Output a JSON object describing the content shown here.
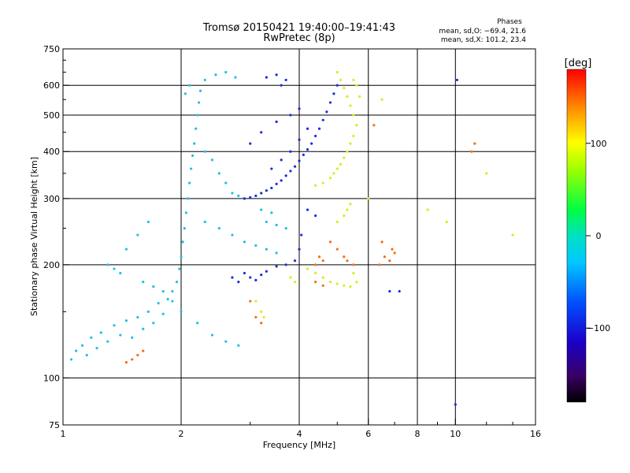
{
  "chart_data": {
    "type": "scatter",
    "title": "Tromsø 20150421 19:40:00–19:41:43",
    "subtitle": "RwPretec (8p)",
    "xlabel": "Frequency [MHz]",
    "ylabel": "Stationary phase Virtual Height [km]",
    "xscale": "log",
    "yscale": "log",
    "xlim": [
      1,
      16
    ],
    "ylim": [
      75,
      750
    ],
    "xticks": [
      1,
      2,
      4,
      6,
      8,
      10,
      16
    ],
    "yticks": [
      75,
      100,
      200,
      300,
      400,
      500,
      600,
      750
    ],
    "grid_x": [
      2,
      4,
      6,
      8,
      10
    ],
    "grid_y": [
      100,
      200,
      300,
      400,
      500,
      600
    ],
    "minor_xticks": [
      3,
      5,
      7,
      9,
      12,
      14
    ],
    "minor_yticks": [
      150,
      250,
      350,
      450,
      550,
      650,
      700
    ],
    "grid": true,
    "phase_stats": {
      "header": "Phases",
      "line1": "mean, sd,O: −69.4, 21.6",
      "line2": "mean, sd,X: 101.2, 23.4"
    },
    "colorbar": {
      "label": "[deg]",
      "range": [
        -180,
        180
      ],
      "ticks": [
        100,
        0,
        -100
      ],
      "colormap": "rainbow"
    },
    "series": [
      {
        "color_description": "cyan (about -30 deg)",
        "points": [
          [
            1.05,
            112
          ],
          [
            1.08,
            118
          ],
          [
            1.12,
            122
          ],
          [
            1.15,
            115
          ],
          [
            1.18,
            128
          ],
          [
            1.22,
            120
          ],
          [
            1.25,
            132
          ],
          [
            1.3,
            125
          ],
          [
            1.35,
            138
          ],
          [
            1.4,
            130
          ],
          [
            1.45,
            142
          ],
          [
            1.5,
            128
          ],
          [
            1.55,
            145
          ],
          [
            1.6,
            135
          ],
          [
            1.65,
            150
          ],
          [
            1.7,
            140
          ],
          [
            1.75,
            158
          ],
          [
            1.8,
            148
          ],
          [
            1.85,
            162
          ],
          [
            1.9,
            170
          ],
          [
            1.95,
            180
          ],
          [
            1.98,
            195
          ],
          [
            2.0,
            210
          ],
          [
            2.02,
            230
          ],
          [
            2.04,
            250
          ],
          [
            2.06,
            275
          ],
          [
            2.08,
            300
          ],
          [
            2.1,
            330
          ],
          [
            2.12,
            360
          ],
          [
            2.14,
            390
          ],
          [
            2.16,
            420
          ],
          [
            2.18,
            460
          ],
          [
            2.2,
            500
          ],
          [
            2.22,
            540
          ],
          [
            2.24,
            580
          ],
          [
            2.1,
            600
          ],
          [
            2.05,
            570
          ],
          [
            2.3,
            400
          ],
          [
            2.4,
            380
          ],
          [
            2.5,
            350
          ],
          [
            2.6,
            330
          ],
          [
            2.7,
            310
          ],
          [
            2.8,
            305
          ],
          [
            2.9,
            300
          ],
          [
            2.3,
            260
          ],
          [
            2.5,
            250
          ],
          [
            2.7,
            240
          ],
          [
            2.9,
            230
          ],
          [
            3.1,
            225
          ],
          [
            3.3,
            220
          ],
          [
            3.5,
            215
          ],
          [
            3.3,
            260
          ],
          [
            3.5,
            255
          ],
          [
            3.7,
            250
          ],
          [
            3.2,
            280
          ],
          [
            3.4,
            275
          ],
          [
            1.3,
            200
          ],
          [
            1.35,
            195
          ],
          [
            1.4,
            190
          ],
          [
            1.6,
            180
          ],
          [
            1.7,
            175
          ],
          [
            1.8,
            170
          ],
          [
            1.9,
            160
          ],
          [
            2.0,
            150
          ],
          [
            2.2,
            140
          ],
          [
            2.4,
            130
          ],
          [
            2.6,
            125
          ],
          [
            2.8,
            122
          ],
          [
            1.45,
            220
          ],
          [
            1.55,
            240
          ],
          [
            1.65,
            260
          ],
          [
            2.3,
            620
          ],
          [
            2.45,
            640
          ],
          [
            2.6,
            650
          ],
          [
            2.75,
            630
          ]
        ]
      },
      {
        "color_description": "blue (about -100 deg)",
        "points": [
          [
            2.9,
            300
          ],
          [
            3.0,
            302
          ],
          [
            3.1,
            305
          ],
          [
            3.2,
            310
          ],
          [
            3.3,
            315
          ],
          [
            3.4,
            320
          ],
          [
            3.5,
            328
          ],
          [
            3.6,
            335
          ],
          [
            3.7,
            345
          ],
          [
            3.8,
            355
          ],
          [
            3.9,
            365
          ],
          [
            4.0,
            378
          ],
          [
            4.1,
            392
          ],
          [
            4.2,
            405
          ],
          [
            4.3,
            420
          ],
          [
            4.4,
            440
          ],
          [
            4.5,
            460
          ],
          [
            4.6,
            485
          ],
          [
            4.7,
            510
          ],
          [
            4.8,
            540
          ],
          [
            4.9,
            570
          ],
          [
            5.0,
            600
          ],
          [
            3.4,
            360
          ],
          [
            3.6,
            380
          ],
          [
            3.8,
            400
          ],
          [
            4.0,
            430
          ],
          [
            4.2,
            460
          ],
          [
            3.0,
            420
          ],
          [
            3.2,
            450
          ],
          [
            3.5,
            480
          ],
          [
            3.8,
            500
          ],
          [
            4.0,
            520
          ],
          [
            2.9,
            190
          ],
          [
            3.0,
            185
          ],
          [
            3.1,
            182
          ],
          [
            3.2,
            188
          ],
          [
            3.3,
            192
          ],
          [
            3.5,
            198
          ],
          [
            3.7,
            200
          ],
          [
            3.9,
            205
          ],
          [
            4.0,
            220
          ],
          [
            4.05,
            240
          ],
          [
            2.7,
            185
          ],
          [
            2.8,
            180
          ],
          [
            3.3,
            630
          ],
          [
            3.5,
            640
          ],
          [
            3.7,
            620
          ],
          [
            3.6,
            600
          ],
          [
            4.2,
            280
          ],
          [
            4.4,
            270
          ],
          [
            10.0,
            85
          ],
          [
            10.1,
            620
          ],
          [
            6.8,
            170
          ],
          [
            7.2,
            170
          ]
        ]
      },
      {
        "color_description": "yellow-green (about 100 deg)",
        "points": [
          [
            5.0,
            650
          ],
          [
            5.1,
            620
          ],
          [
            5.2,
            590
          ],
          [
            5.3,
            560
          ],
          [
            5.4,
            530
          ],
          [
            5.5,
            500
          ],
          [
            5.6,
            470
          ],
          [
            5.5,
            440
          ],
          [
            5.4,
            420
          ],
          [
            5.3,
            400
          ],
          [
            5.2,
            385
          ],
          [
            5.1,
            370
          ],
          [
            5.0,
            360
          ],
          [
            4.9,
            350
          ],
          [
            4.8,
            340
          ],
          [
            4.6,
            330
          ],
          [
            4.4,
            325
          ],
          [
            5.6,
            600
          ],
          [
            5.7,
            560
          ],
          [
            5.5,
            620
          ],
          [
            4.2,
            195
          ],
          [
            4.4,
            190
          ],
          [
            4.6,
            185
          ],
          [
            4.8,
            180
          ],
          [
            5.0,
            178
          ],
          [
            5.2,
            176
          ],
          [
            5.4,
            175
          ],
          [
            5.6,
            180
          ],
          [
            5.5,
            190
          ],
          [
            3.9,
            180
          ],
          [
            3.8,
            185
          ],
          [
            3.1,
            160
          ],
          [
            3.2,
            150
          ],
          [
            3.25,
            145
          ],
          [
            5.2,
            270
          ],
          [
            5.3,
            280
          ],
          [
            5.4,
            290
          ],
          [
            5.0,
            260
          ],
          [
            6.0,
            300
          ],
          [
            6.5,
            550
          ],
          [
            12.0,
            350
          ],
          [
            8.5,
            280
          ],
          [
            9.5,
            260
          ],
          [
            14.0,
            240
          ]
        ]
      },
      {
        "color_description": "orange (about 140 deg)",
        "points": [
          [
            1.5,
            112
          ],
          [
            1.55,
            115
          ],
          [
            1.6,
            118
          ],
          [
            1.45,
            110
          ],
          [
            4.8,
            230
          ],
          [
            5.0,
            220
          ],
          [
            5.2,
            210
          ],
          [
            4.5,
            210
          ],
          [
            4.6,
            205
          ],
          [
            4.4,
            200
          ],
          [
            6.4,
            200
          ],
          [
            6.6,
            210
          ],
          [
            6.8,
            205
          ],
          [
            7.0,
            215
          ],
          [
            6.9,
            220
          ],
          [
            6.5,
            230
          ],
          [
            3.0,
            160
          ],
          [
            3.1,
            145
          ],
          [
            3.2,
            140
          ],
          [
            4.4,
            180
          ],
          [
            4.6,
            176
          ],
          [
            11.0,
            400
          ],
          [
            11.2,
            420
          ],
          [
            6.2,
            470
          ],
          [
            5.5,
            200
          ],
          [
            5.3,
            205
          ]
        ]
      }
    ]
  }
}
